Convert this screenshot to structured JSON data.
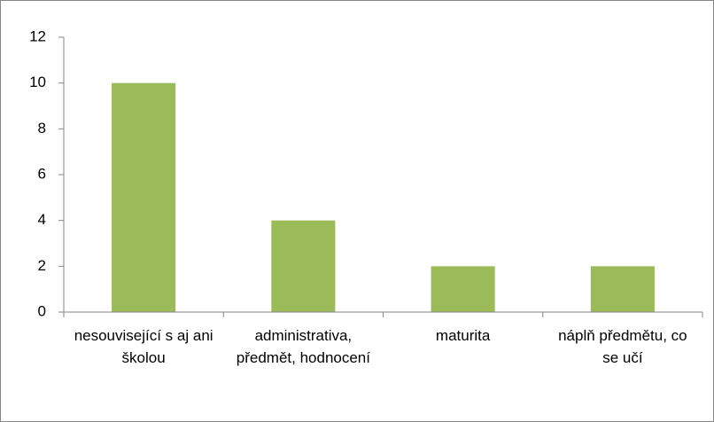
{
  "chart_data": {
    "type": "bar",
    "categories": [
      "nesouvisející s aj ani školou",
      "administrativa, předmět, hodnocení",
      "maturita",
      "náplň předmětu, co se učí"
    ],
    "values": [
      10,
      4,
      2,
      2
    ],
    "color": "#9bbb59",
    "ylim": [
      0,
      12
    ],
    "yticks": [
      0,
      2,
      4,
      6,
      8,
      10,
      12
    ],
    "grid": false
  }
}
